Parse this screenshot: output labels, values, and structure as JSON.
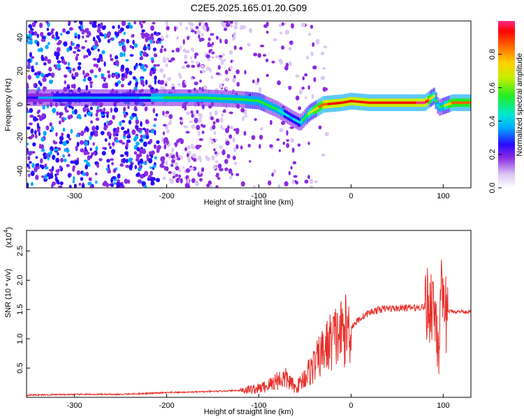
{
  "title": "C2E5.2025.165.01.20.G09",
  "chart_data": [
    {
      "type": "heatmap",
      "xlabel": "Height of straight line (km)",
      "ylabel": "Frequency (Hz)",
      "xlim": [
        -352,
        130
      ],
      "ylim": [
        -50,
        50
      ],
      "x_ticks": [
        -300,
        -200,
        -100,
        0,
        100
      ],
      "y_ticks": [
        -40,
        -20,
        0,
        20,
        40
      ],
      "colorbar": {
        "label": "Normalized spectral amplitude",
        "range": [
          0,
          1
        ],
        "ticks": [
          0.0,
          0.2,
          0.4,
          0.6,
          0.8
        ],
        "tick_labels": [
          "0.0",
          "0.2",
          "0.4",
          "0.6",
          "0.8"
        ]
      },
      "ridge_trace": {
        "x": [
          -350,
          -300,
          -250,
          -200,
          -160,
          -120,
          -100,
          -80,
          -65,
          -55,
          -45,
          -30,
          -10,
          0,
          20,
          50,
          80,
          90,
          95,
          110,
          130
        ],
        "frequency": [
          4,
          4,
          4,
          4,
          4,
          3,
          2,
          -3,
          -8,
          -11,
          -5,
          0,
          1,
          2,
          1,
          1,
          1,
          5,
          -2,
          1,
          1
        ],
        "amplitude": [
          0.25,
          0.3,
          0.3,
          0.45,
          0.5,
          0.5,
          0.55,
          0.45,
          0.35,
          0.4,
          0.6,
          0.85,
          0.9,
          0.9,
          0.9,
          0.92,
          0.95,
          0.6,
          0.4,
          0.8,
          0.8
        ]
      }
    },
    {
      "type": "line",
      "xlabel": "Height of straight line (km)",
      "ylabel": "SNR (10 * v/v)",
      "y_scale_label": "(x10",
      "y_scale_exponent": "4",
      "xlim": [
        -352,
        130
      ],
      "ylim": [
        0,
        28500
      ],
      "x_ticks": [
        -300,
        -200,
        -100,
        0,
        100
      ],
      "y_ticks": [
        5000,
        10000,
        15000,
        20000,
        25000
      ],
      "y_tick_labels": [
        "0.5",
        "1.0",
        "1.5",
        "2.0",
        "2.5"
      ],
      "color": "#e8302a",
      "x": [
        -350,
        -300,
        -250,
        -200,
        -150,
        -120,
        -100,
        -90,
        -80,
        -70,
        -60,
        -50,
        -40,
        -30,
        -20,
        -10,
        0,
        10,
        20,
        30,
        40,
        50,
        60,
        70,
        80,
        85,
        88,
        92,
        95,
        98,
        100,
        105,
        110,
        115,
        120,
        125,
        130
      ],
      "y": [
        400,
        500,
        500,
        800,
        1000,
        1200,
        1500,
        2000,
        3000,
        3200,
        1500,
        3500,
        5500,
        8000,
        10000,
        11000,
        12000,
        13500,
        14500,
        15000,
        15200,
        15200,
        15300,
        15300,
        15500,
        16000,
        16500,
        14000,
        9000,
        17000,
        13000,
        14700,
        14700,
        14600,
        14700,
        14600,
        14600
      ]
    }
  ]
}
